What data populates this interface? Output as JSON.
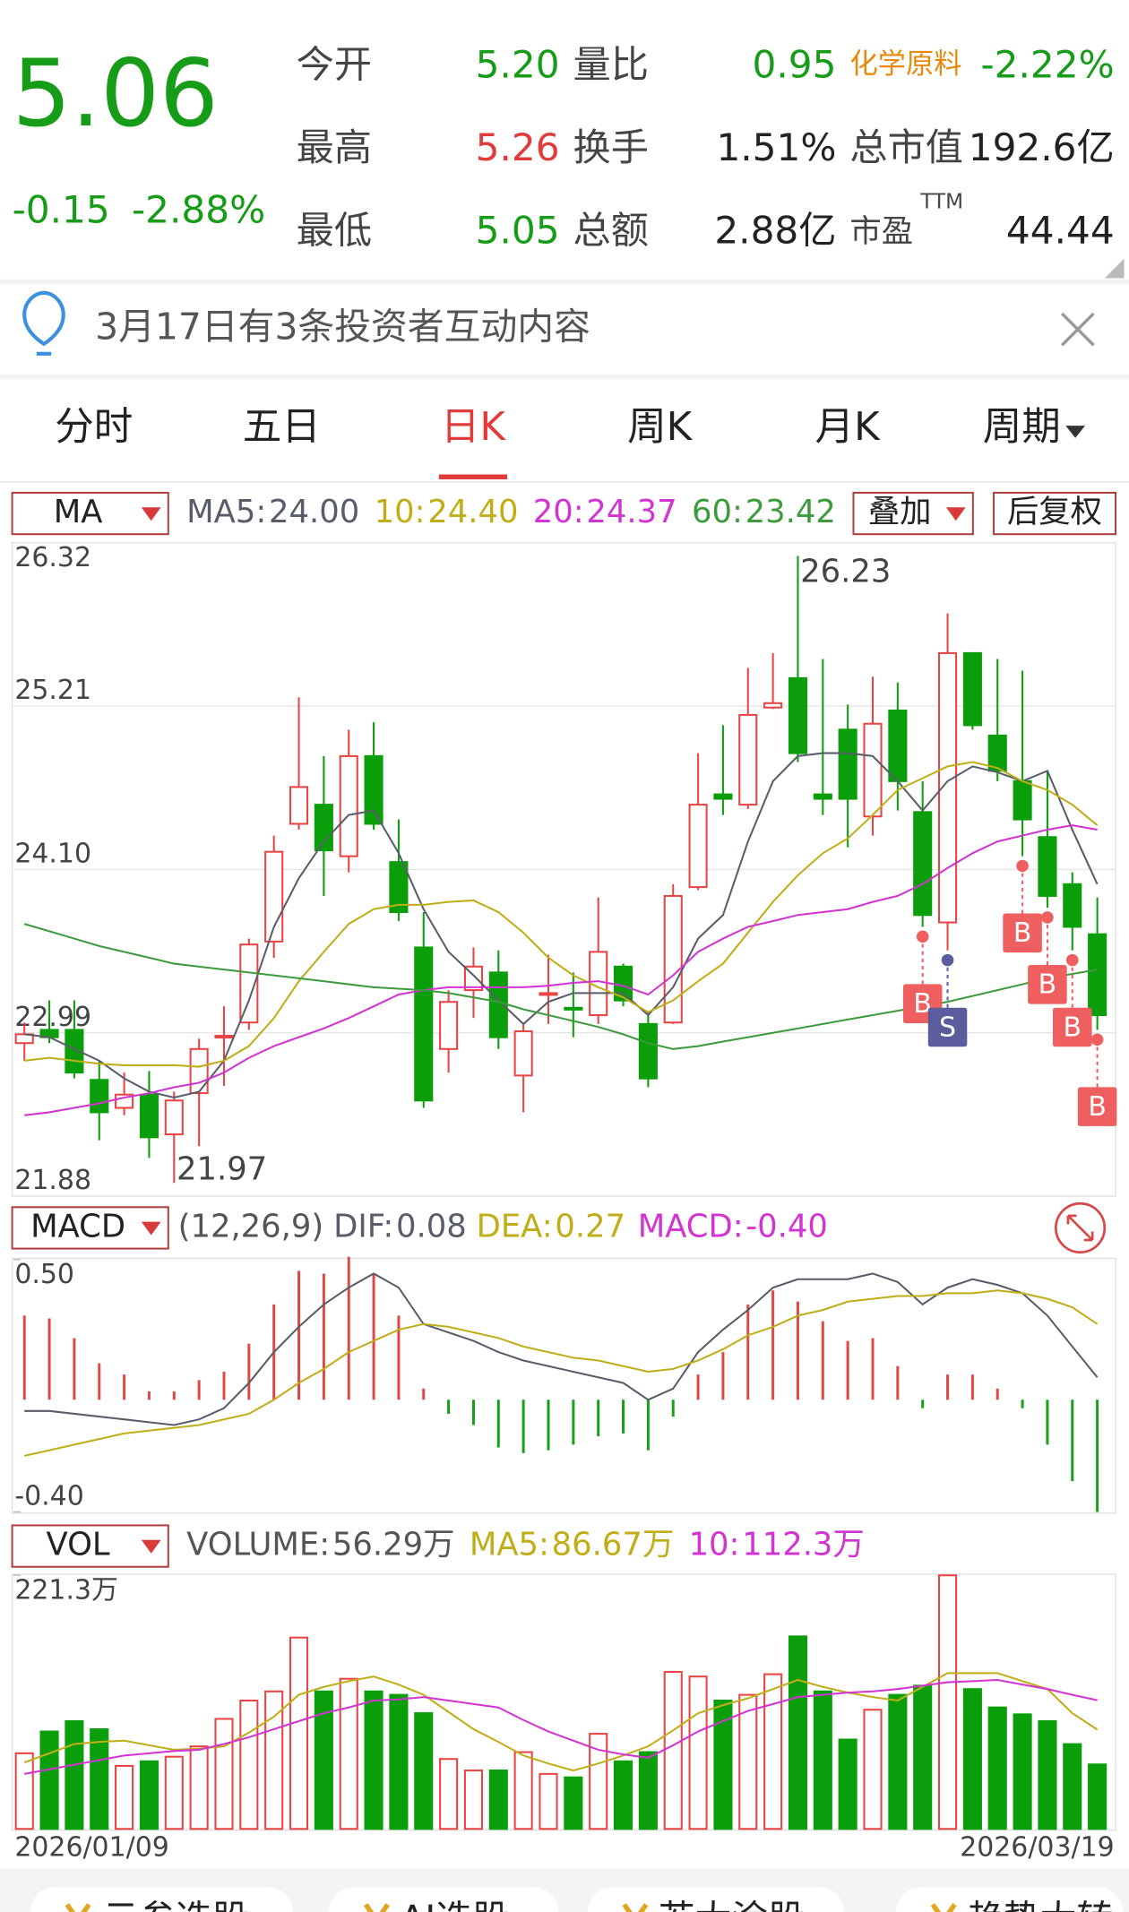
{
  "quote": {
    "price": "5.06",
    "change": "-0.15",
    "change_pct": "-2.88%",
    "open": {
      "label": "今开",
      "value": "5.20"
    },
    "volume_ratio": {
      "label": "量比",
      "value": "0.95"
    },
    "sector": {
      "name": "化学原料",
      "change": "-2.22%"
    },
    "high": {
      "label": "最高",
      "value": "5.26"
    },
    "turnover": {
      "label": "换手",
      "value": "1.51%"
    },
    "market_cap": {
      "label": "总市值",
      "value": "192.6亿"
    },
    "low": {
      "label": "最低",
      "value": "5.05"
    },
    "amount": {
      "label": "总额",
      "value": "2.88亿"
    },
    "pe": {
      "label": "市盈",
      "note": "TTM",
      "value": "44.44"
    }
  },
  "notice": "3月17日有3条投资者互动内容",
  "tabs": [
    "分时",
    "五日",
    "日K",
    "周K",
    "月K",
    "周期"
  ],
  "kline_buttons": [
    "叠加",
    "后复权"
  ],
  "chart_data": [
    {
      "type": "candlestick",
      "title": "MA",
      "open": [
        22.92,
        23.01,
        23.01,
        22.67,
        22.48,
        22.57,
        22.3,
        22.58,
        22.96,
        23.06,
        23.61,
        24.41,
        24.54,
        24.19,
        24.87,
        24.15,
        23.57,
        22.88,
        23.28,
        23.4,
        22.7,
        23.25,
        23.16,
        23.11,
        23.44,
        23.05,
        23.06,
        23.98,
        24.61,
        24.54,
        25.2,
        25.4,
        24.61,
        25.05,
        24.46,
        25.18,
        24.49,
        23.74,
        25.57,
        25.01,
        24.7,
        24.32,
        24.0,
        23.66
      ],
      "high": [
        23.06,
        23.21,
        23.21,
        22.8,
        22.72,
        22.73,
        22.59,
        22.95,
        23.17,
        23.63,
        24.33,
        25.27,
        24.87,
        25.05,
        25.1,
        24.44,
        23.81,
        23.28,
        23.57,
        23.55,
        23.06,
        23.52,
        23.4,
        23.91,
        23.46,
        23.13,
        24.0,
        24.89,
        25.08,
        25.47,
        25.57,
        26.23,
        25.53,
        25.22,
        25.41,
        25.37,
        24.7,
        25.84,
        25.57,
        25.53,
        25.45,
        24.77,
        24.08,
        23.91
      ],
      "low": [
        22.8,
        22.92,
        22.68,
        22.26,
        22.43,
        22.14,
        21.97,
        22.22,
        22.63,
        23.01,
        23.5,
        24.37,
        23.92,
        24.08,
        24.37,
        23.75,
        22.48,
        22.72,
        23.09,
        22.88,
        22.45,
        23.05,
        22.96,
        23.05,
        23.17,
        22.62,
        23.05,
        23.96,
        24.47,
        24.51,
        25.19,
        24.83,
        24.47,
        24.25,
        24.33,
        24.5,
        23.71,
        23.55,
        25.05,
        24.7,
        24.19,
        23.84,
        23.55,
        23.01
      ],
      "close": [
        22.98,
        22.96,
        22.72,
        22.45,
        22.57,
        22.28,
        22.53,
        22.88,
        22.97,
        23.59,
        24.22,
        24.66,
        24.23,
        24.87,
        24.41,
        23.81,
        22.53,
        23.2,
        23.44,
        22.96,
        23.0,
        23.26,
        23.15,
        23.54,
        23.21,
        22.68,
        23.92,
        24.54,
        24.58,
        25.15,
        25.23,
        24.89,
        24.58,
        24.58,
        25.09,
        24.7,
        23.79,
        25.57,
        25.08,
        24.77,
        24.44,
        23.92,
        23.71,
        23.11
      ],
      "up_color": "#e84444",
      "down_color": "#0b9e0b",
      "series": [
        {
          "name": "MA5:",
          "current": "24.00",
          "color": "#585d69",
          "values": [
            22.98,
            22.96,
            22.88,
            22.8,
            22.68,
            22.59,
            22.55,
            22.59,
            22.8,
            23.21,
            23.71,
            24.04,
            24.29,
            24.47,
            24.5,
            24.21,
            23.83,
            23.54,
            23.38,
            23.21,
            23.05,
            23.2,
            23.26,
            23.26,
            23.26,
            23.11,
            23.3,
            23.63,
            23.79,
            24.29,
            24.7,
            24.87,
            24.89,
            24.89,
            24.87,
            24.7,
            24.5,
            24.7,
            24.8,
            24.76,
            24.7,
            24.77,
            24.37,
            24.0
          ]
        },
        {
          "name": "10:",
          "current": "24.40",
          "color": "#bfae17",
          "values": [
            22.8,
            22.82,
            22.8,
            22.78,
            22.77,
            22.77,
            22.77,
            22.76,
            22.8,
            22.9,
            23.09,
            23.34,
            23.54,
            23.73,
            23.83,
            23.86,
            23.86,
            23.88,
            23.89,
            23.81,
            23.67,
            23.5,
            23.38,
            23.3,
            23.23,
            23.13,
            23.21,
            23.34,
            23.46,
            23.67,
            23.88,
            24.06,
            24.21,
            24.31,
            24.47,
            24.64,
            24.72,
            24.8,
            24.83,
            24.79,
            24.7,
            24.64,
            24.54,
            24.4
          ]
        },
        {
          "name": "20:",
          "current": "24.37",
          "color": "#d233d2",
          "values": [
            22.43,
            22.45,
            22.48,
            22.51,
            22.55,
            22.58,
            22.62,
            22.65,
            22.72,
            22.82,
            22.9,
            22.96,
            23.02,
            23.09,
            23.17,
            23.25,
            23.28,
            23.3,
            23.3,
            23.3,
            23.3,
            23.31,
            23.33,
            23.34,
            23.31,
            23.25,
            23.38,
            23.54,
            23.63,
            23.71,
            23.75,
            23.79,
            23.81,
            23.83,
            23.88,
            23.92,
            24.0,
            24.11,
            24.21,
            24.29,
            24.33,
            24.37,
            24.4,
            24.37
          ]
        },
        {
          "name": "60:",
          "current": "23.42",
          "color": "#3d9b3d",
          "values": [
            23.73,
            23.68,
            23.63,
            23.58,
            23.54,
            23.5,
            23.46,
            23.44,
            23.42,
            23.4,
            23.38,
            23.36,
            23.34,
            23.32,
            23.3,
            23.29,
            23.28,
            23.26,
            23.23,
            23.2,
            23.15,
            23.11,
            23.07,
            23.03,
            22.98,
            22.92,
            22.88,
            22.9,
            22.93,
            22.96,
            22.99,
            23.02,
            23.05,
            23.08,
            23.11,
            23.14,
            23.17,
            23.2,
            23.24,
            23.28,
            23.32,
            23.36,
            23.39,
            23.42
          ]
        }
      ],
      "ylim": [
        21.88,
        26.32
      ],
      "yticks": [
        26.32,
        25.21,
        {
          "value": 24.1,
          "label": "24.10"
        },
        22.99,
        21.88
      ],
      "grid": true,
      "max_label": 26.23,
      "min_label": 21.97,
      "signals": [
        null,
        null,
        null,
        null,
        null,
        null,
        null,
        null,
        null,
        null,
        null,
        null,
        null,
        null,
        null,
        null,
        null,
        null,
        null,
        null,
        null,
        null,
        null,
        null,
        null,
        null,
        null,
        null,
        null,
        null,
        null,
        null,
        null,
        null,
        null,
        null,
        "B",
        "S",
        null,
        null,
        "B",
        "B",
        "B",
        "B"
      ],
      "signal_colors": {
        "B": "#ef5f5f",
        "S": "#5b5c9e"
      }
    },
    {
      "type": "macd",
      "title": "MACD",
      "params": "(12,26,9)",
      "values": [
        0.3,
        0.29,
        0.22,
        0.13,
        0.09,
        0.03,
        0.03,
        0.07,
        0.1,
        0.2,
        0.34,
        0.46,
        0.45,
        0.51,
        0.45,
        0.3,
        0.04,
        -0.05,
        -0.09,
        -0.17,
        -0.19,
        -0.18,
        -0.16,
        -0.13,
        -0.12,
        -0.18,
        -0.06,
        0.09,
        0.17,
        0.34,
        0.39,
        0.35,
        0.28,
        0.21,
        0.22,
        0.12,
        -0.03,
        0.09,
        0.09,
        0.04,
        -0.03,
        -0.16,
        -0.29,
        -0.4
      ],
      "histogram_name": "MACD:",
      "histogram_current": "-0.40",
      "histogram_color": "#d233d2",
      "up_color": "#e04848",
      "down_color": "#17a017",
      "series": [
        {
          "name": "DIF:",
          "current": "0.08",
          "color": "#585d69",
          "values": [
            -0.04,
            -0.04,
            -0.05,
            -0.06,
            -0.07,
            -0.08,
            -0.09,
            -0.07,
            -0.03,
            0.06,
            0.17,
            0.26,
            0.34,
            0.4,
            0.45,
            0.4,
            0.27,
            0.24,
            0.21,
            0.17,
            0.14,
            0.12,
            0.1,
            0.08,
            0.06,
            0.0,
            0.04,
            0.17,
            0.25,
            0.32,
            0.4,
            0.43,
            0.43,
            0.43,
            0.45,
            0.42,
            0.34,
            0.4,
            0.43,
            0.41,
            0.38,
            0.3,
            0.19,
            0.08
          ]
        },
        {
          "name": "DEA:",
          "current": "0.27",
          "color": "#bfae17",
          "values": [
            -0.2,
            -0.18,
            -0.16,
            -0.14,
            -0.12,
            -0.11,
            -0.1,
            -0.09,
            -0.07,
            -0.05,
            0.0,
            0.06,
            0.11,
            0.17,
            0.21,
            0.25,
            0.27,
            0.26,
            0.24,
            0.22,
            0.19,
            0.17,
            0.15,
            0.14,
            0.12,
            0.1,
            0.11,
            0.14,
            0.18,
            0.23,
            0.26,
            0.3,
            0.32,
            0.35,
            0.36,
            0.37,
            0.37,
            0.38,
            0.38,
            0.39,
            0.38,
            0.36,
            0.33,
            0.27
          ]
        }
      ],
      "ylim": [
        -0.4,
        0.5
      ],
      "yticks": [
        {
          "value": 0.5,
          "label": "0.50"
        },
        {
          "value": -0.4,
          "label": "-0.40"
        }
      ],
      "grid": false
    },
    {
      "type": "volume",
      "title": "VOL",
      "name": "VOLUME:",
      "current": "56.29万",
      "categories": [
        "2026/01/09",
        null,
        null,
        null,
        null,
        null,
        null,
        null,
        null,
        null,
        null,
        null,
        null,
        null,
        null,
        null,
        null,
        null,
        null,
        null,
        null,
        null,
        null,
        null,
        null,
        null,
        null,
        null,
        null,
        null,
        null,
        null,
        null,
        null,
        null,
        null,
        null,
        null,
        null,
        null,
        null,
        null,
        null,
        "2026/03/19"
      ],
      "values": [
        66,
        85,
        94,
        87,
        55,
        59,
        63,
        72,
        96,
        112,
        120,
        167,
        120,
        131,
        120,
        117,
        101,
        61,
        51,
        51,
        67,
        48,
        45,
        83,
        59,
        67,
        137,
        133,
        112,
        117,
        135,
        168,
        120,
        78,
        104,
        117,
        125,
        221.3,
        122,
        106,
        100,
        94,
        74,
        56.29
      ],
      "up_color": "#e84444",
      "down_color": "#0b9e0b",
      "series": [
        {
          "name": "MA5:",
          "current": "86.67万",
          "color": "#bfae17",
          "values": [
            58,
            66,
            74,
            76,
            77,
            73,
            69,
            70,
            72,
            84,
            98,
            117,
            124,
            129,
            133,
            126,
            117,
            102,
            87,
            76,
            64,
            57,
            51,
            57,
            64,
            72,
            86,
            101,
            108,
            114,
            122,
            130,
            124,
            119,
            115,
            112,
            124,
            136,
            136,
            136,
            129,
            122,
            101,
            86.67
          ]
        },
        {
          "name": "10:",
          "current": "112.3万",
          "color": "#d233d2",
          "values": [
            48,
            52,
            56,
            60,
            64,
            66,
            68,
            69,
            74,
            80,
            87,
            94,
            101,
            106,
            112,
            113,
            115,
            112,
            109,
            106,
            95,
            85,
            77,
            69,
            65,
            62,
            73,
            85,
            94,
            103,
            109,
            115,
            117,
            119,
            120,
            122,
            125,
            128,
            129,
            130,
            126,
            122,
            117,
            112.3
          ]
        }
      ],
      "ylim": [
        0,
        221.3
      ],
      "yticks": [
        {
          "value": 221.3,
          "label": "221.3万"
        }
      ],
      "grid": false
    }
  ],
  "shortcuts": [
    "云参选股",
    "AI选股",
    "若大涂股",
    "趋势大转"
  ]
}
